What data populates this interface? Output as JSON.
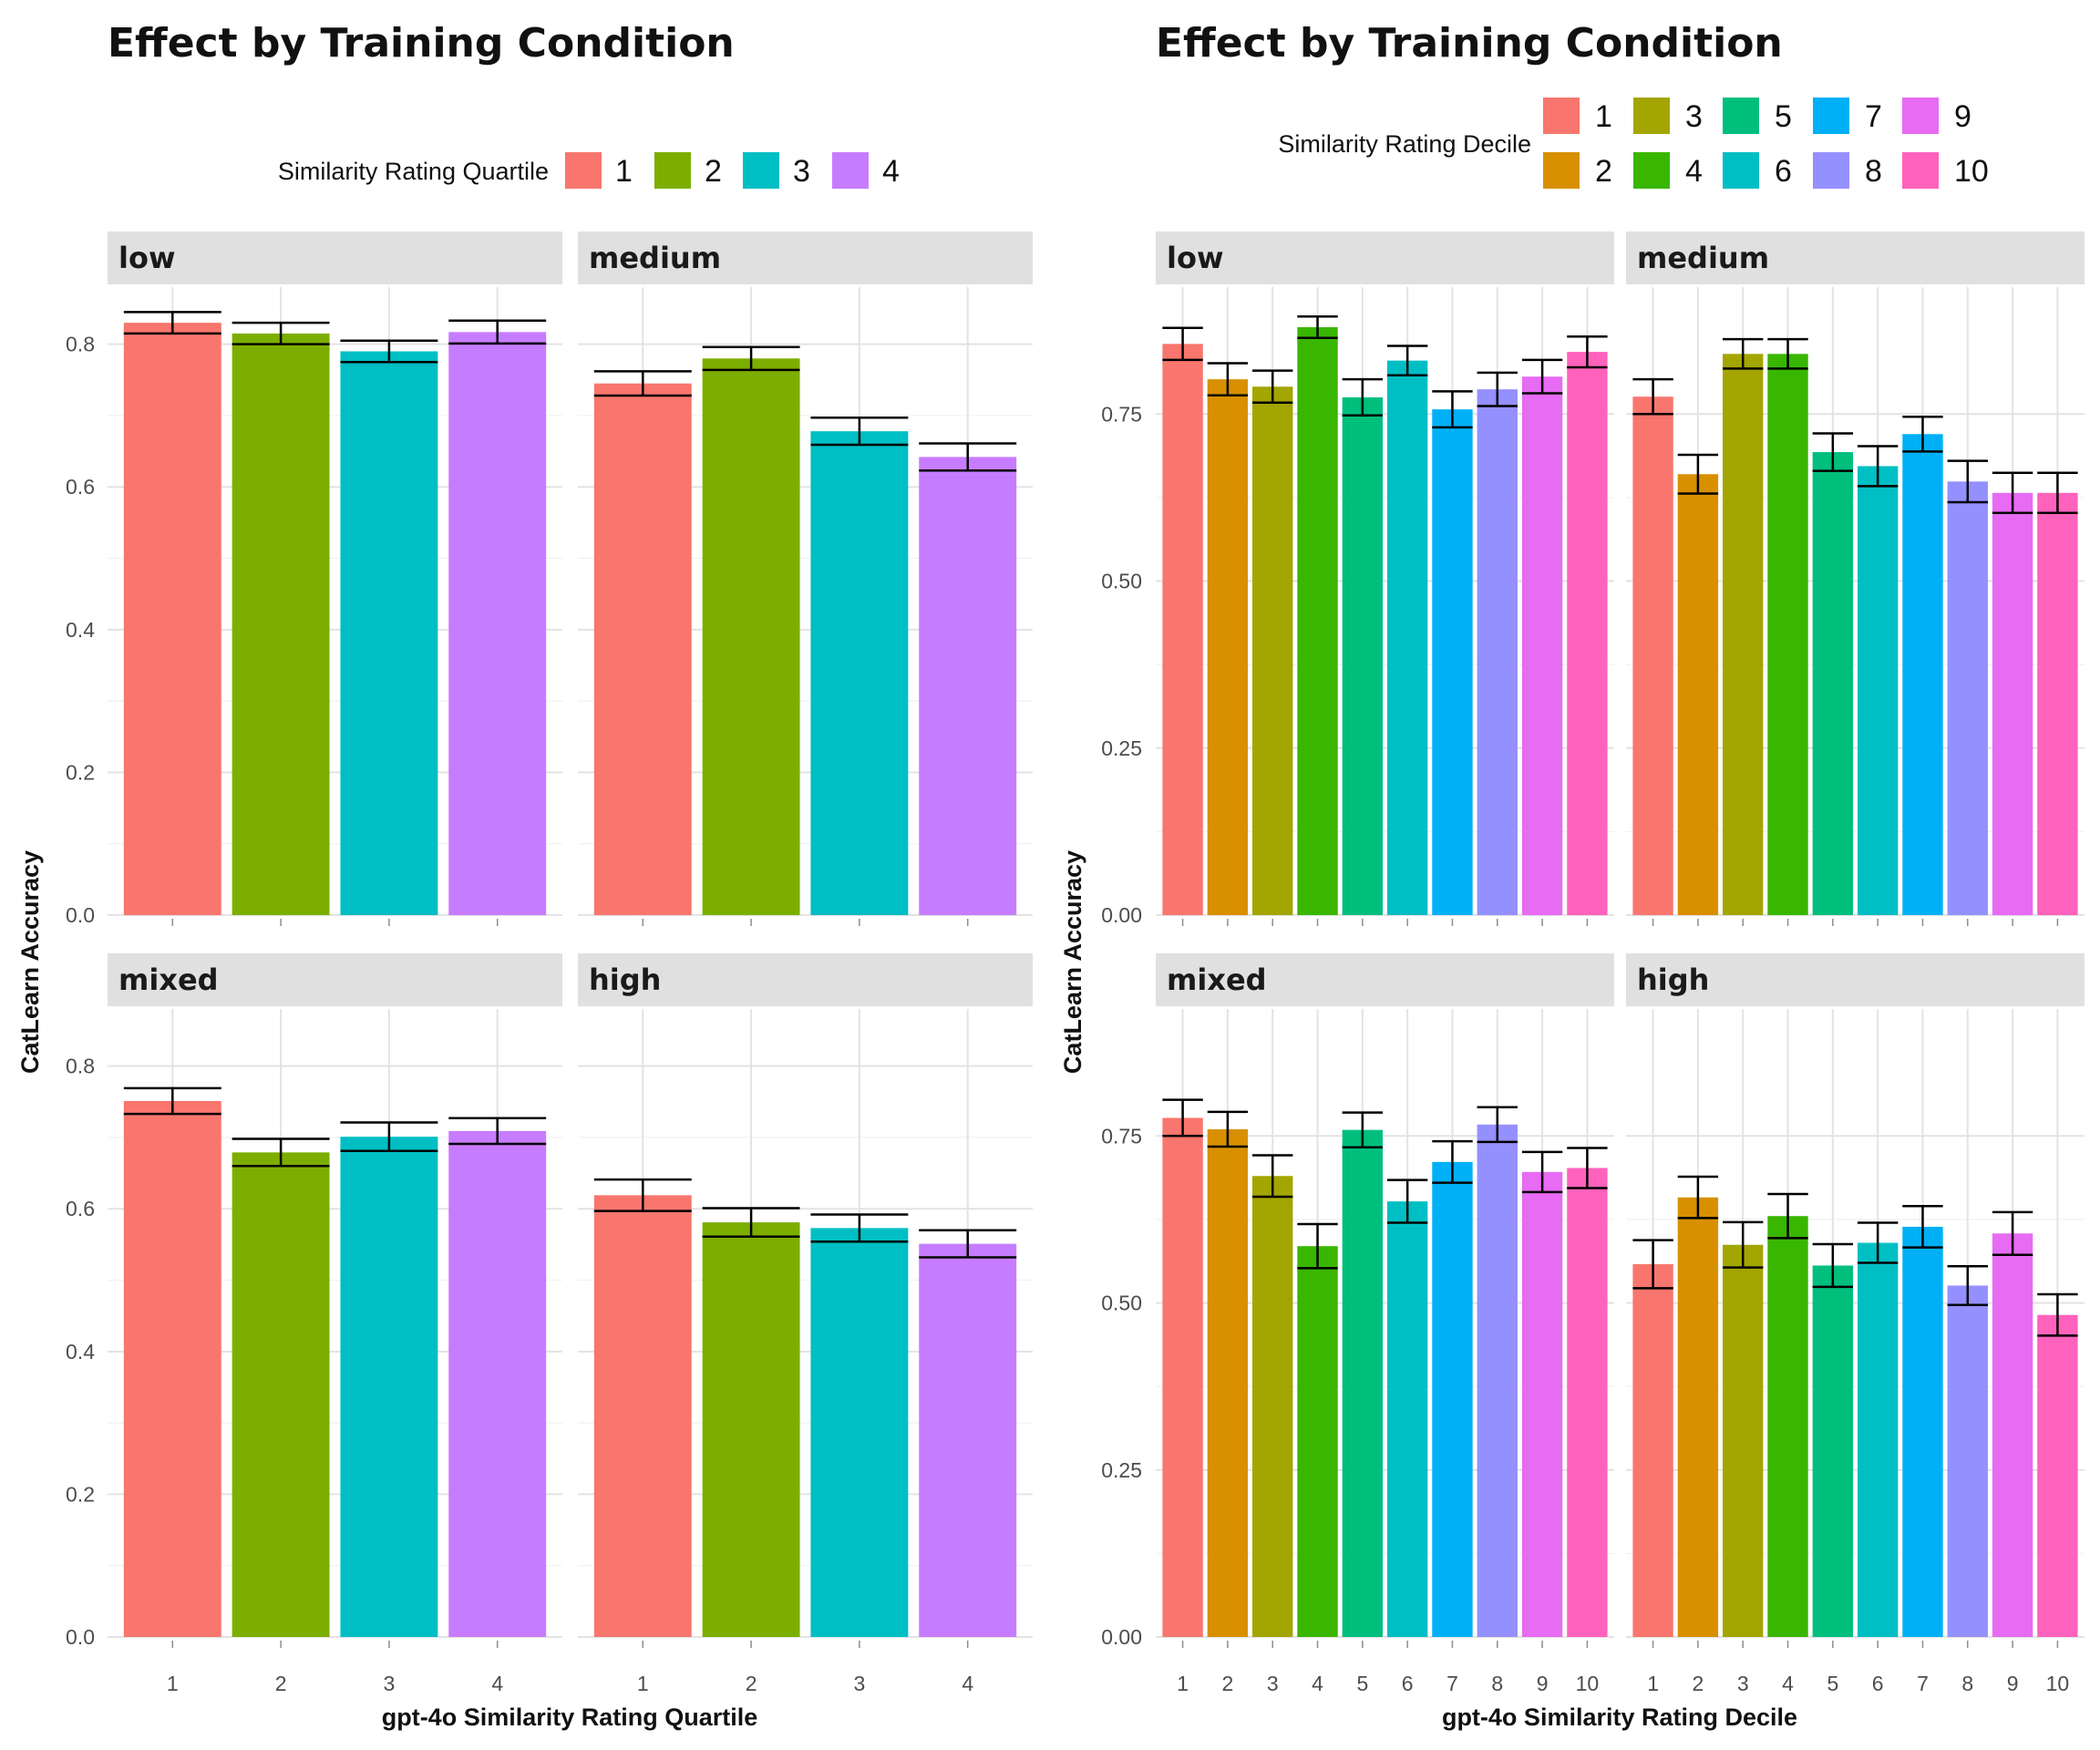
{
  "chart_data": [
    {
      "type": "bar",
      "title": "Effect by Training Condition",
      "xlabel": "gpt-4o Similarity Rating Quartile",
      "ylabel": "CatLearn Accuracy",
      "legend_title": "Similarity Rating Quartile",
      "legend_position": "top",
      "grid": true,
      "ylim": [
        0,
        0.88
      ],
      "y_ticks": [
        "0.0",
        "0.2",
        "0.4",
        "0.6",
        "0.8"
      ],
      "y_tick_values": [
        0,
        0.2,
        0.4,
        0.6,
        0.8
      ],
      "categories": [
        "1",
        "2",
        "3",
        "4"
      ],
      "colors": [
        "#F8766D",
        "#7CAE00",
        "#00BFC4",
        "#C77CFF"
      ],
      "facets": [
        {
          "label": "low",
          "values": [
            0.83,
            0.815,
            0.79,
            0.817
          ],
          "err": [
            0.015,
            0.015,
            0.015,
            0.016
          ]
        },
        {
          "label": "medium",
          "values": [
            0.745,
            0.78,
            0.678,
            0.642
          ],
          "err": [
            0.017,
            0.016,
            0.019,
            0.019
          ]
        },
        {
          "label": "mixed",
          "values": [
            0.751,
            0.679,
            0.701,
            0.709
          ],
          "err": [
            0.018,
            0.019,
            0.02,
            0.018
          ]
        },
        {
          "label": "high",
          "values": [
            0.619,
            0.581,
            0.573,
            0.551
          ],
          "err": [
            0.022,
            0.02,
            0.019,
            0.019
          ]
        }
      ]
    },
    {
      "type": "bar",
      "title": "Effect by Training Condition",
      "xlabel": "gpt-4o Similarity Rating Decile",
      "ylabel": "CatLearn Accuracy",
      "legend_title": "Similarity Rating Decile",
      "legend_position": "top",
      "grid": true,
      "ylim": [
        0,
        0.94
      ],
      "y_ticks": [
        "0.00",
        "0.25",
        "0.50",
        "0.75"
      ],
      "y_tick_values": [
        0,
        0.25,
        0.5,
        0.75
      ],
      "categories": [
        "1",
        "2",
        "3",
        "4",
        "5",
        "6",
        "7",
        "8",
        "9",
        "10"
      ],
      "colors": [
        "#F8766D",
        "#D89000",
        "#A3A500",
        "#39B600",
        "#00BF7D",
        "#00BFC4",
        "#00B0F6",
        "#9590FF",
        "#E76BF3",
        "#FF62BC"
      ],
      "facets": [
        {
          "label": "low",
          "values": [
            0.855,
            0.802,
            0.791,
            0.88,
            0.775,
            0.83,
            0.757,
            0.787,
            0.806,
            0.843
          ],
          "err": [
            0.024,
            0.024,
            0.024,
            0.016,
            0.027,
            0.022,
            0.027,
            0.025,
            0.025,
            0.023
          ]
        },
        {
          "label": "medium",
          "values": [
            0.776,
            0.66,
            0.84,
            0.84,
            0.693,
            0.672,
            0.72,
            0.649,
            0.632,
            0.632
          ],
          "err": [
            0.026,
            0.029,
            0.022,
            0.022,
            0.028,
            0.03,
            0.026,
            0.031,
            0.03,
            0.03
          ]
        },
        {
          "label": "mixed",
          "values": [
            0.777,
            0.76,
            0.69,
            0.585,
            0.759,
            0.652,
            0.711,
            0.767,
            0.696,
            0.702
          ],
          "err": [
            0.027,
            0.026,
            0.031,
            0.033,
            0.026,
            0.032,
            0.031,
            0.026,
            0.03,
            0.03
          ]
        },
        {
          "label": "high",
          "values": [
            0.558,
            0.658,
            0.587,
            0.63,
            0.556,
            0.59,
            0.614,
            0.526,
            0.604,
            0.482
          ],
          "err": [
            0.036,
            0.031,
            0.034,
            0.033,
            0.032,
            0.03,
            0.031,
            0.029,
            0.032,
            0.031
          ]
        }
      ]
    }
  ]
}
